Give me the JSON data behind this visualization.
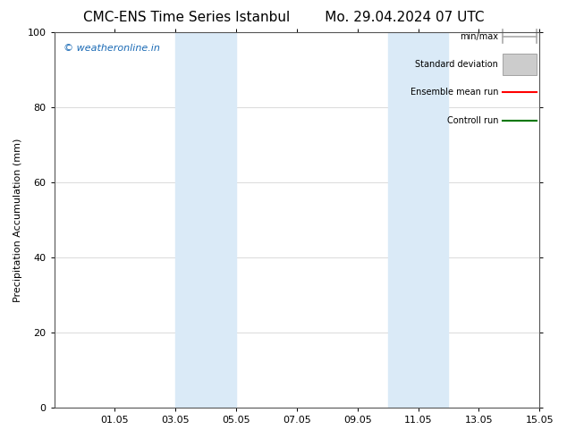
{
  "title_left": "CMC-ENS Time Series Istanbul",
  "title_right": "Mo. 29.04.2024 07 UTC",
  "ylabel": "Precipitation Accumulation (mm)",
  "ylim": [
    0,
    100
  ],
  "yticks": [
    0,
    20,
    40,
    60,
    80,
    100
  ],
  "xtick_labels": [
    "01.05",
    "03.05",
    "05.05",
    "07.05",
    "09.05",
    "11.05",
    "13.05",
    "15.05"
  ],
  "xtick_positions": [
    2,
    4,
    6,
    8,
    10,
    12,
    14,
    16
  ],
  "xlim": [
    0,
    16
  ],
  "shaded_bands": [
    {
      "x_start": 4.0,
      "x_end": 6.0
    },
    {
      "x_start": 11.0,
      "x_end": 13.0
    }
  ],
  "shaded_color": "#daeaf7",
  "watermark_text": "© weatheronline.in",
  "watermark_color": "#1a6ab5",
  "legend_items": [
    {
      "label": "min/max",
      "color": "#aaaaaa",
      "style": "minmax"
    },
    {
      "label": "Standard deviation",
      "color": "#cccccc",
      "style": "stddev"
    },
    {
      "label": "Ensemble mean run",
      "color": "#ff0000",
      "style": "line"
    },
    {
      "label": "Controll run",
      "color": "#007700",
      "style": "line"
    }
  ],
  "background_color": "#ffffff",
  "plot_bg_color": "#ffffff",
  "grid_color": "#cccccc",
  "title_fontsize": 11,
  "axis_label_fontsize": 8,
  "tick_fontsize": 8,
  "legend_fontsize": 7
}
